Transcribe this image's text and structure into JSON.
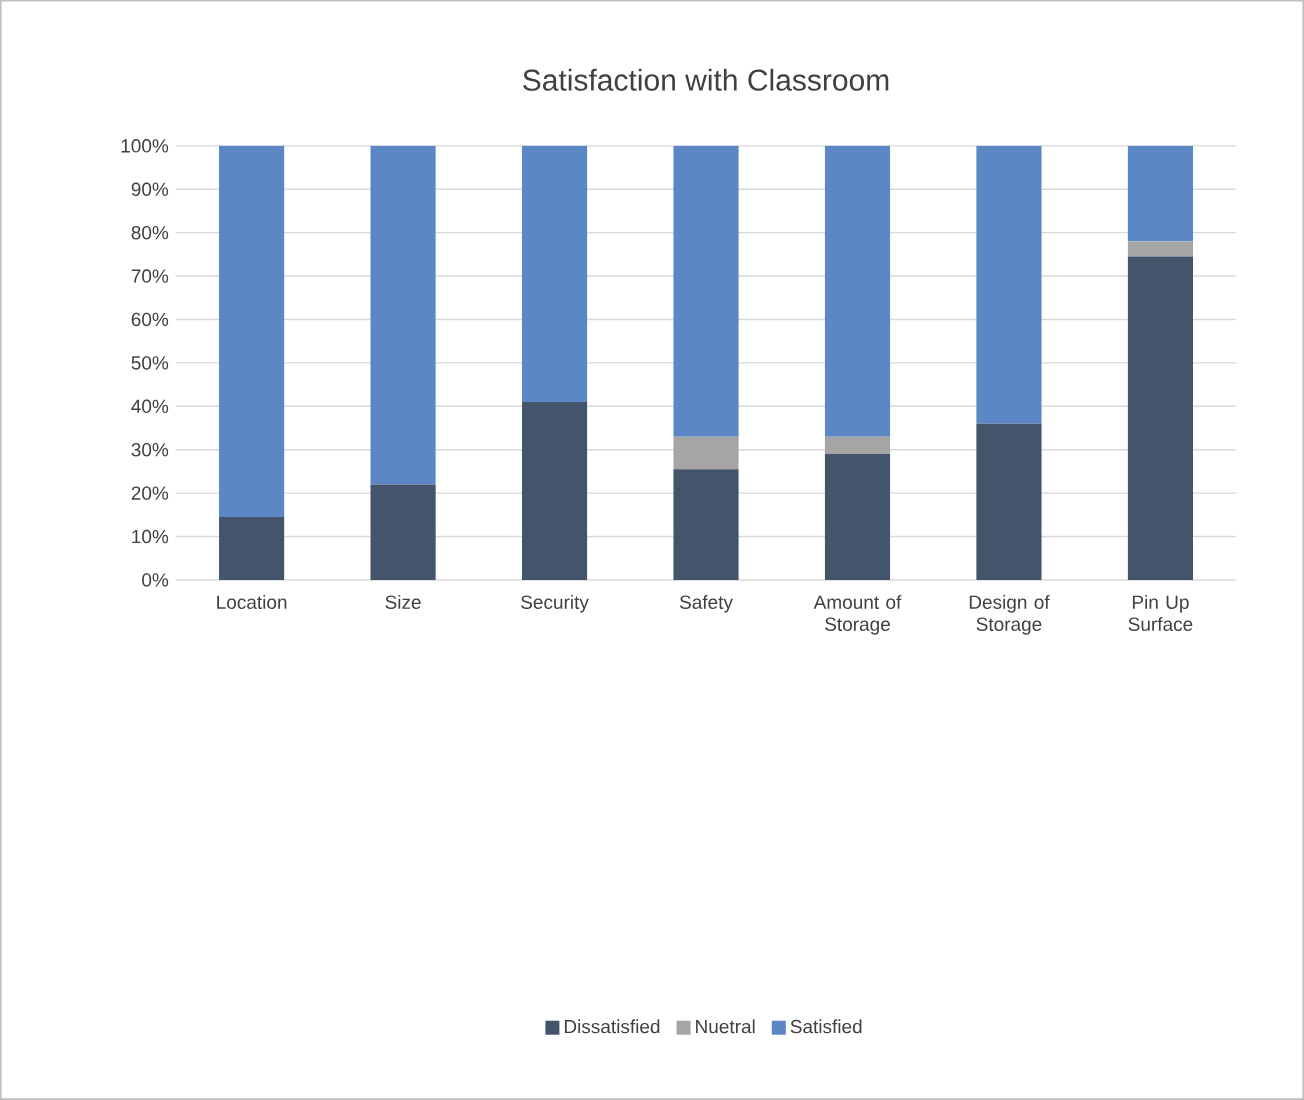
{
  "chart_data": {
    "type": "bar",
    "stacked": true,
    "title": "Satisfaction with Classroom",
    "categories": [
      "Location",
      "Size",
      "Security",
      "Safety",
      "Amount of Storage",
      "Design of Storage",
      "Pin Up Surface"
    ],
    "series": [
      {
        "name": "Dissatisfied",
        "color": "#44546a",
        "values": [
          14.5,
          22,
          41,
          25.5,
          29,
          36,
          74.5
        ]
      },
      {
        "name": "Nuetral",
        "color": "#a5a5a5",
        "values": [
          0,
          0,
          0,
          7.5,
          4,
          0,
          3.5
        ]
      },
      {
        "name": "Satisfied",
        "color": "#5b87c5",
        "values": [
          85.5,
          78,
          59,
          67,
          67,
          64,
          22
        ]
      }
    ],
    "ylim": [
      0,
      100
    ],
    "yticks": [
      {
        "value": 0,
        "label": "0%"
      },
      {
        "value": 10,
        "label": "10%"
      },
      {
        "value": 20,
        "label": "20%"
      },
      {
        "value": 30,
        "label": "30%"
      },
      {
        "value": 40,
        "label": "40%"
      },
      {
        "value": 50,
        "label": "50%"
      },
      {
        "value": 60,
        "label": "60%"
      },
      {
        "value": 70,
        "label": "70%"
      },
      {
        "value": 80,
        "label": "80%"
      },
      {
        "value": 90,
        "label": "90%"
      },
      {
        "value": 100,
        "label": "100%"
      }
    ],
    "grid": "y",
    "legend": "bottom"
  }
}
